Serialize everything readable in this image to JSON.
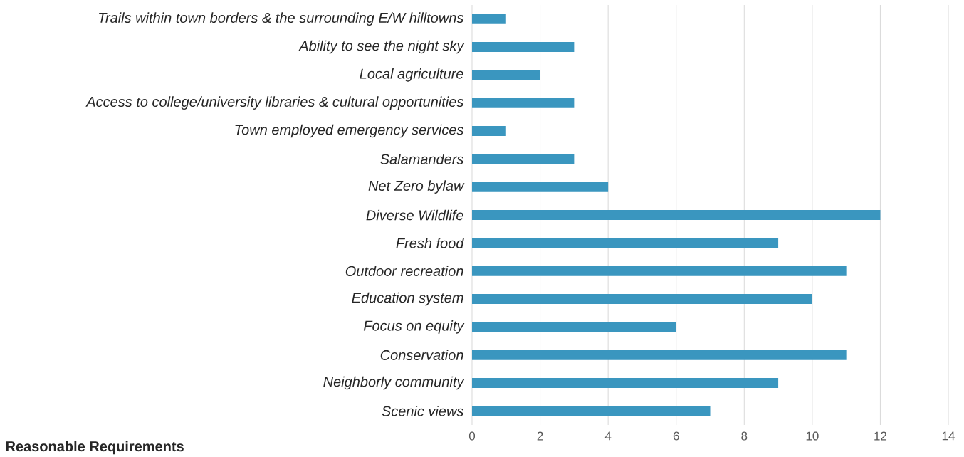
{
  "chart_data": {
    "type": "bar",
    "orientation": "horizontal",
    "categories": [
      "Trails within town borders & the surrounding E/W hilltowns",
      "Ability to see the night sky",
      "Local agriculture",
      "Access to college/university libraries & cultural opportunities",
      "Town employed emergency services",
      "Salamanders",
      "Net Zero bylaw",
      "Diverse Wildlife",
      "Fresh food",
      "Outdoor recreation",
      "Education system",
      "Focus on equity",
      "Conservation",
      "Neighborly community",
      "Scenic views"
    ],
    "values": [
      1,
      3,
      2,
      3,
      1,
      3,
      4,
      12,
      9,
      11,
      10,
      6,
      11,
      9,
      7
    ],
    "color": "#3a96bf",
    "xlim": [
      0,
      14
    ],
    "xticks": [
      0,
      2,
      4,
      6,
      8,
      10,
      12,
      14
    ],
    "grid": "x",
    "annotations": [
      "Reasonable Requirements"
    ]
  }
}
